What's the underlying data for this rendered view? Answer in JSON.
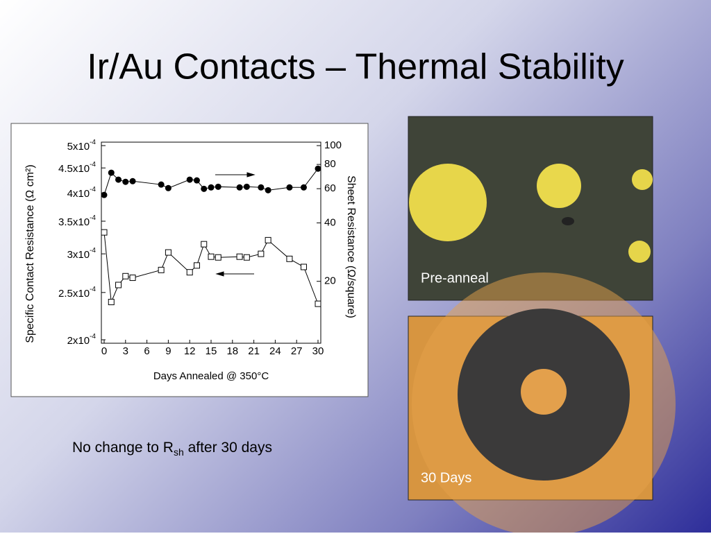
{
  "slide_title": "Ir/Au Contacts – Thermal Stability",
  "chart_data": {
    "type": "line",
    "xlabel": "Days Annealed @ 350°C",
    "ylabel": "Specific Contact Resistance (Ω cm²)",
    "y2label": "Sheet Resistance (Ω/square)",
    "x": [
      0,
      1,
      2,
      3,
      4,
      8,
      9,
      12,
      13,
      14,
      15,
      16,
      19,
      20,
      22,
      23,
      26,
      28,
      30
    ],
    "xlim": [
      0,
      30
    ],
    "xticks": [
      0,
      3,
      6,
      9,
      12,
      15,
      18,
      21,
      24,
      27,
      30
    ],
    "ylim": [
      0.0002,
      0.0005
    ],
    "ylog": true,
    "yticks": [
      {
        "value": 0.0002,
        "label": "2x10-4"
      },
      {
        "value": 0.00025,
        "label": "2.5x10-4"
      },
      {
        "value": 0.0003,
        "label": "3x10-4"
      },
      {
        "value": 0.00035,
        "label": "3.5x10-4"
      },
      {
        "value": 0.0004,
        "label": "4x10-4"
      },
      {
        "value": 0.00045,
        "label": "4.5x10-4"
      },
      {
        "value": 0.0005,
        "label": "5x10-4"
      }
    ],
    "y2lim": [
      10,
      100
    ],
    "y2log": true,
    "y2ticks": [
      20,
      40,
      60,
      80,
      100
    ],
    "series": [
      {
        "marker": "square",
        "color": "#000000",
        "values": [
          0.000332,
          0.000239,
          0.000259,
          0.00027,
          0.000268,
          0.000278,
          0.000302,
          0.000275,
          0.000284,
          0.000314,
          0.000296,
          0.000295,
          0.000296,
          0.000295,
          0.0003,
          0.00032,
          0.000293,
          0.000282,
          0.000237
        ]
      },
      {
        "marker": "circle",
        "axis": "y2",
        "color": "#000000",
        "values": [
          55.7,
          72.5,
          66.8,
          65.1,
          65.6,
          63.0,
          60.4,
          66.8,
          66.2,
          59.9,
          60.9,
          61.4,
          60.9,
          61.4,
          60.9,
          58.9,
          60.9,
          60.9,
          76.1
        ]
      }
    ]
  },
  "photos": [
    {
      "label": "Pre-anneal"
    },
    {
      "label": "30 Days"
    }
  ],
  "note": {
    "prefix": "No change to R",
    "subscript": "sh",
    "suffix": " after 30 days"
  }
}
